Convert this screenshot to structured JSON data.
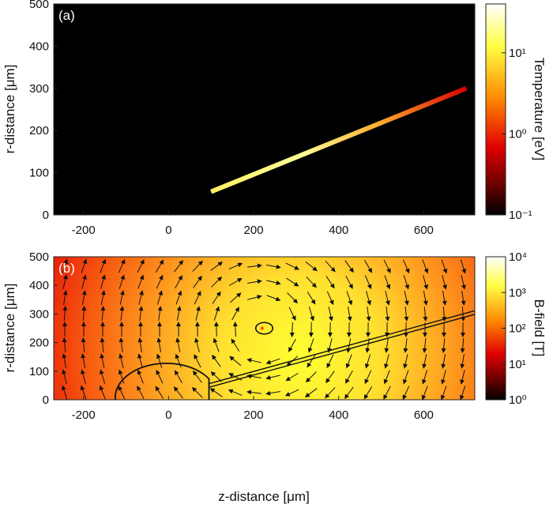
{
  "chart_data": [
    {
      "type": "heatmap",
      "panel_label": "(a)",
      "xlabel": "",
      "ylabel": "r-distance [μm]",
      "xlim": [
        -270,
        720
      ],
      "ylim": [
        0,
        500
      ],
      "xticks": [
        -200,
        0,
        200,
        400,
        600
      ],
      "yticks": [
        0,
        100,
        200,
        300,
        400,
        500
      ],
      "colorbar": {
        "label": "Temperature [eV]",
        "scale": "log",
        "range": [
          0.1,
          40
        ],
        "ticks": [
          "10⁻¹",
          "10⁰",
          "10¹"
        ],
        "tick_values": [
          0.1,
          1,
          10
        ],
        "colors": [
          "#000000",
          "#e00000",
          "#ff8800",
          "#ffff44",
          "#ffffff"
        ]
      },
      "background_value": 0.1,
      "beam": {
        "start": [
          100,
          55
        ],
        "end": [
          700,
          300
        ],
        "temperature_start": 10,
        "temperature_end": 0.8
      }
    },
    {
      "type": "heatmap",
      "panel_label": "(b)",
      "xlabel": "z-distance [μm]",
      "ylabel": "r-distance [μm]",
      "xlim": [
        -270,
        720
      ],
      "ylim": [
        0,
        500
      ],
      "xticks": [
        -200,
        0,
        200,
        400,
        600
      ],
      "yticks": [
        0,
        100,
        200,
        300,
        400,
        500
      ],
      "colorbar": {
        "label": "B-field [T]",
        "scale": "log",
        "range": [
          1,
          10000
        ],
        "ticks": [
          "10⁰",
          "10¹",
          "10²",
          "10³",
          "10⁴"
        ],
        "tick_values": [
          1,
          10,
          100,
          1000,
          10000
        ],
        "colors": [
          "#000000",
          "#e00000",
          "#ff8800",
          "#ffff44",
          "#ffffff"
        ]
      },
      "field_peak": [
        220,
        250
      ],
      "vortex_circle": {
        "center": [
          225,
          250
        ],
        "radius": 20
      },
      "target_outline": {
        "center": [
          0,
          0
        ],
        "radius": 120,
        "stem_x": [
          -125,
          95
        ]
      },
      "beam_channel": {
        "start": [
          95,
          50
        ],
        "end": [
          720,
          305
        ]
      },
      "arrows": "vector field circulating around the vortex at (220, 250)"
    }
  ]
}
